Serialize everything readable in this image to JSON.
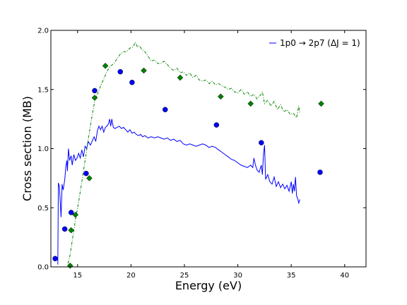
{
  "chart_data": {
    "type": "line",
    "title": "",
    "xlabel": "Energy (eV)",
    "ylabel": "Cross section (MB)",
    "xlim": [
      12.5,
      42
    ],
    "ylim": [
      0.0,
      2.0
    ],
    "x_ticks": [
      15,
      20,
      25,
      30,
      35,
      40
    ],
    "x_tick_labels": [
      "15",
      "20",
      "25",
      "30",
      "35",
      "40"
    ],
    "y_ticks": [
      0.0,
      0.5,
      1.0,
      1.5,
      2.0
    ],
    "y_tick_labels": [
      "0.0",
      "0.5",
      "1.0",
      "1.5",
      "2.0"
    ],
    "grid": false,
    "legend": {
      "placement": "top-right",
      "entries": [
        {
          "label": "1p0 → 2p7 (ΔJ = 1)",
          "color": "#0000ff",
          "style": "solid-line"
        }
      ]
    },
    "series": [
      {
        "name": "1p0 → 2p7 (ΔJ = 1)",
        "style": "solid-line",
        "color": "#0000ff",
        "points": [
          [
            13.15,
            0.02
          ],
          [
            13.2,
            0.71
          ],
          [
            13.3,
            0.68
          ],
          [
            13.45,
            0.42
          ],
          [
            13.55,
            0.7
          ],
          [
            13.65,
            0.65
          ],
          [
            13.8,
            0.74
          ],
          [
            13.9,
            0.85
          ],
          [
            14.0,
            0.9
          ],
          [
            14.05,
            0.81
          ],
          [
            14.15,
            1.0
          ],
          [
            14.25,
            0.9
          ],
          [
            14.4,
            0.94
          ],
          [
            14.5,
            0.86
          ],
          [
            14.65,
            0.95
          ],
          [
            14.8,
            0.9
          ],
          [
            14.95,
            0.92
          ],
          [
            15.1,
            0.96
          ],
          [
            15.25,
            0.92
          ],
          [
            15.4,
            0.99
          ],
          [
            15.55,
            0.93
          ],
          [
            15.7,
            1.02
          ],
          [
            15.85,
            1.0
          ],
          [
            16.0,
            1.06
          ],
          [
            16.2,
            1.03
          ],
          [
            16.35,
            1.06
          ],
          [
            16.55,
            1.1
          ],
          [
            16.7,
            1.06
          ],
          [
            16.85,
            1.15
          ],
          [
            17.0,
            1.19
          ],
          [
            17.15,
            1.16
          ],
          [
            17.3,
            1.19
          ],
          [
            17.45,
            1.14
          ],
          [
            17.6,
            1.18
          ],
          [
            17.75,
            1.19
          ],
          [
            17.9,
            1.21
          ],
          [
            18.0,
            1.25
          ],
          [
            18.1,
            1.19
          ],
          [
            18.2,
            1.25
          ],
          [
            18.35,
            1.18
          ],
          [
            18.5,
            1.17
          ],
          [
            18.7,
            1.18
          ],
          [
            18.9,
            1.19
          ],
          [
            19.1,
            1.17
          ],
          [
            19.3,
            1.18
          ],
          [
            19.5,
            1.16
          ],
          [
            19.7,
            1.14
          ],
          [
            19.9,
            1.16
          ],
          [
            20.1,
            1.13
          ],
          [
            20.3,
            1.14
          ],
          [
            20.5,
            1.12
          ],
          [
            20.7,
            1.11
          ],
          [
            20.9,
            1.12
          ],
          [
            21.1,
            1.1
          ],
          [
            21.3,
            1.11
          ],
          [
            21.6,
            1.09
          ],
          [
            21.9,
            1.1
          ],
          [
            22.2,
            1.09
          ],
          [
            22.5,
            1.1
          ],
          [
            22.8,
            1.09
          ],
          [
            23.1,
            1.08
          ],
          [
            23.4,
            1.09
          ],
          [
            23.7,
            1.07
          ],
          [
            24.0,
            1.08
          ],
          [
            24.3,
            1.06
          ],
          [
            24.6,
            1.07
          ],
          [
            24.9,
            1.04
          ],
          [
            25.2,
            1.03
          ],
          [
            25.5,
            1.04
          ],
          [
            25.8,
            1.03
          ],
          [
            26.1,
            1.02
          ],
          [
            26.4,
            1.03
          ],
          [
            26.7,
            1.04
          ],
          [
            27.0,
            1.03
          ],
          [
            27.3,
            1.01
          ],
          [
            27.6,
            1.02
          ],
          [
            27.9,
            1.01
          ],
          [
            28.2,
            0.99
          ],
          [
            28.5,
            0.97
          ],
          [
            28.8,
            0.95
          ],
          [
            29.1,
            0.93
          ],
          [
            29.4,
            0.91
          ],
          [
            29.7,
            0.9
          ],
          [
            30.0,
            0.88
          ],
          [
            30.3,
            0.86
          ],
          [
            30.6,
            0.85
          ],
          [
            30.9,
            0.84
          ],
          [
            31.2,
            0.86
          ],
          [
            31.4,
            0.84
          ],
          [
            31.5,
            0.92
          ],
          [
            31.65,
            0.86
          ],
          [
            31.8,
            0.82
          ],
          [
            32.0,
            0.8
          ],
          [
            32.2,
            0.86
          ],
          [
            32.3,
            0.78
          ],
          [
            32.4,
            0.95
          ],
          [
            32.5,
            1.03
          ],
          [
            32.6,
            0.74
          ],
          [
            32.8,
            0.78
          ],
          [
            33.0,
            0.72
          ],
          [
            33.2,
            0.7
          ],
          [
            33.4,
            0.76
          ],
          [
            33.6,
            0.68
          ],
          [
            33.8,
            0.72
          ],
          [
            34.0,
            0.67
          ],
          [
            34.2,
            0.7
          ],
          [
            34.4,
            0.66
          ],
          [
            34.6,
            0.69
          ],
          [
            34.8,
            0.64
          ],
          [
            35.0,
            0.72
          ],
          [
            35.1,
            0.62
          ],
          [
            35.2,
            0.7
          ],
          [
            35.3,
            0.64
          ],
          [
            35.4,
            0.76
          ],
          [
            35.5,
            0.6
          ],
          [
            35.6,
            0.58
          ],
          [
            35.7,
            0.54
          ],
          [
            35.8,
            0.57
          ]
        ]
      },
      {
        "name": "",
        "style": "dash-dot-line",
        "color": "#008000",
        "points": [
          [
            14.1,
            0.03
          ],
          [
            14.3,
            0.1
          ],
          [
            14.5,
            0.22
          ],
          [
            14.8,
            0.4
          ],
          [
            15.1,
            0.55
          ],
          [
            15.4,
            0.72
          ],
          [
            15.7,
            0.9
          ],
          [
            16.0,
            1.08
          ],
          [
            16.3,
            1.25
          ],
          [
            16.6,
            1.4
          ],
          [
            16.9,
            1.47
          ],
          [
            17.2,
            1.54
          ],
          [
            17.5,
            1.6
          ],
          [
            17.8,
            1.66
          ],
          [
            18.1,
            1.7
          ],
          [
            18.4,
            1.72
          ],
          [
            18.7,
            1.76
          ],
          [
            19.0,
            1.8
          ],
          [
            19.3,
            1.82
          ],
          [
            19.6,
            1.82
          ],
          [
            19.9,
            1.85
          ],
          [
            20.2,
            1.86
          ],
          [
            20.4,
            1.9
          ],
          [
            20.6,
            1.86
          ],
          [
            20.8,
            1.87
          ],
          [
            21.0,
            1.84
          ],
          [
            21.3,
            1.82
          ],
          [
            21.6,
            1.78
          ],
          [
            21.9,
            1.74
          ],
          [
            22.2,
            1.75
          ],
          [
            22.5,
            1.72
          ],
          [
            22.8,
            1.72
          ],
          [
            23.1,
            1.74
          ],
          [
            23.4,
            1.71
          ],
          [
            23.7,
            1.68
          ],
          [
            24.0,
            1.66
          ],
          [
            24.3,
            1.68
          ],
          [
            24.6,
            1.64
          ],
          [
            24.9,
            1.65
          ],
          [
            25.2,
            1.62
          ],
          [
            25.5,
            1.64
          ],
          [
            25.8,
            1.6
          ],
          [
            26.1,
            1.62
          ],
          [
            26.4,
            1.58
          ],
          [
            26.7,
            1.57
          ],
          [
            27.0,
            1.58
          ],
          [
            27.3,
            1.55
          ],
          [
            27.6,
            1.57
          ],
          [
            27.9,
            1.54
          ],
          [
            28.2,
            1.55
          ],
          [
            28.5,
            1.53
          ],
          [
            28.8,
            1.52
          ],
          [
            29.1,
            1.5
          ],
          [
            29.4,
            1.51
          ],
          [
            29.7,
            1.48
          ],
          [
            30.0,
            1.47
          ],
          [
            30.3,
            1.5
          ],
          [
            30.6,
            1.46
          ],
          [
            30.9,
            1.48
          ],
          [
            31.2,
            1.44
          ],
          [
            31.5,
            1.46
          ],
          [
            31.8,
            1.42
          ],
          [
            32.1,
            1.45
          ],
          [
            32.3,
            1.48
          ],
          [
            32.5,
            1.38
          ],
          [
            32.8,
            1.41
          ],
          [
            33.1,
            1.36
          ],
          [
            33.4,
            1.4
          ],
          [
            33.7,
            1.33
          ],
          [
            34.0,
            1.37
          ],
          [
            34.3,
            1.31
          ],
          [
            34.6,
            1.33
          ],
          [
            34.9,
            1.29
          ],
          [
            35.2,
            1.3
          ],
          [
            35.5,
            1.26
          ],
          [
            35.7,
            1.36
          ],
          [
            35.8,
            1.3
          ]
        ]
      },
      {
        "name": "",
        "style": "markers",
        "marker": "circle",
        "color": "#0000ff",
        "points": [
          [
            12.9,
            0.07
          ],
          [
            13.8,
            0.32
          ],
          [
            14.4,
            0.46
          ],
          [
            15.8,
            0.79
          ],
          [
            16.6,
            1.49
          ],
          [
            19.0,
            1.65
          ],
          [
            20.1,
            1.56
          ],
          [
            23.2,
            1.33
          ],
          [
            28.0,
            1.2
          ],
          [
            32.2,
            1.05
          ],
          [
            37.7,
            0.8
          ]
        ]
      },
      {
        "name": "",
        "style": "markers",
        "marker": "diamond",
        "color": "#008000",
        "points": [
          [
            14.3,
            0.01
          ],
          [
            14.4,
            0.31
          ],
          [
            14.8,
            0.44
          ],
          [
            16.1,
            0.75
          ],
          [
            16.6,
            1.43
          ],
          [
            17.6,
            1.7
          ],
          [
            21.2,
            1.66
          ],
          [
            24.6,
            1.6
          ],
          [
            28.4,
            1.44
          ],
          [
            31.2,
            1.38
          ],
          [
            37.8,
            1.38
          ]
        ]
      }
    ]
  }
}
